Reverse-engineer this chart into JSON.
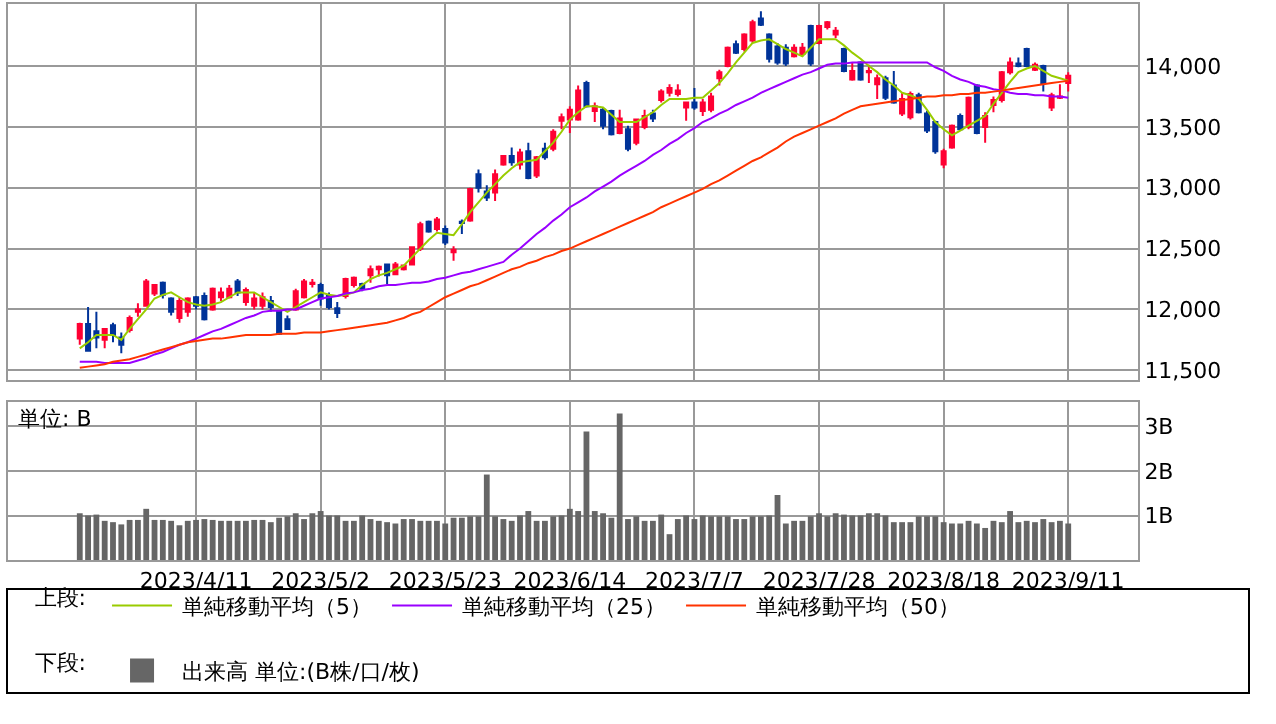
{
  "chart_data": [
    {
      "type": "candlestick",
      "legend_title": "上段:",
      "legend": "bottom",
      "grid": true,
      "tick_labels": "y",
      "categories": [
        null,
        null,
        null,
        null,
        null,
        null,
        null,
        null,
        null,
        null,
        null,
        null,
        null,
        null,
        "2023/4/11",
        null,
        null,
        null,
        null,
        null,
        null,
        null,
        null,
        null,
        null,
        null,
        null,
        null,
        null,
        "2023/5/2",
        null,
        null,
        null,
        null,
        null,
        null,
        null,
        null,
        null,
        null,
        null,
        null,
        null,
        null,
        "2023/5/23",
        null,
        null,
        null,
        null,
        null,
        null,
        null,
        null,
        null,
        null,
        null,
        null,
        null,
        null,
        "2023/6/14",
        null,
        null,
        null,
        null,
        null,
        null,
        null,
        null,
        null,
        null,
        null,
        null,
        null,
        null,
        "2023/7/7",
        null,
        null,
        null,
        null,
        null,
        null,
        null,
        null,
        null,
        null,
        null,
        null,
        null,
        null,
        "2023/7/28",
        null,
        null,
        null,
        null,
        null,
        null,
        null,
        null,
        null,
        null,
        null,
        null,
        null,
        null,
        "2023/8/18",
        null,
        null,
        null,
        null,
        null,
        null,
        null,
        null,
        null,
        null,
        null,
        null,
        null,
        null,
        "2023/9/11"
      ],
      "ohlc": [
        [
          11760,
          11890,
          11710,
          11880
        ],
        [
          11880,
          12020,
          11660,
          11660
        ],
        [
          11820,
          11980,
          11680,
          11770
        ],
        [
          11750,
          11840,
          11680,
          11840
        ],
        [
          11870,
          11890,
          11730,
          11790
        ],
        [
          11770,
          11810,
          11640,
          11710
        ],
        [
          11830,
          11950,
          11810,
          11930
        ],
        [
          11980,
          12050,
          11940,
          12000
        ],
        [
          12030,
          12250,
          12030,
          12230
        ],
        [
          12130,
          12210,
          12110,
          12200
        ],
        [
          12220,
          12230,
          12090,
          12120
        ],
        [
          12090,
          12100,
          11950,
          11980
        ],
        [
          11930,
          12100,
          11890,
          12070
        ],
        [
          11980,
          12100,
          11940,
          12090
        ],
        [
          12100,
          12110,
          12000,
          12030
        ],
        [
          12110,
          12140,
          11910,
          11920
        ],
        [
          12000,
          12180,
          11990,
          12170
        ],
        [
          12100,
          12180,
          12070,
          12140
        ],
        [
          12100,
          12200,
          12090,
          12170
        ],
        [
          12230,
          12250,
          12110,
          12140
        ],
        [
          12060,
          12180,
          12030,
          12160
        ],
        [
          12030,
          12140,
          12000,
          12090
        ],
        [
          12030,
          12140,
          12000,
          12100
        ],
        [
          12070,
          12110,
          11980,
          12020
        ],
        [
          11980,
          11990,
          11790,
          11800
        ],
        [
          11920,
          11950,
          11830,
          11840
        ],
        [
          12000,
          12170,
          11990,
          12150
        ],
        [
          12100,
          12250,
          12090,
          12230
        ],
        [
          12210,
          12250,
          12180,
          12220
        ],
        [
          12200,
          12220,
          12030,
          12090
        ],
        [
          12110,
          12140,
          12000,
          12020
        ],
        [
          12010,
          12060,
          11930,
          11970
        ],
        [
          12110,
          12260,
          12090,
          12250
        ],
        [
          12200,
          12270,
          12180,
          12260
        ],
        [
          12210,
          12220,
          12150,
          12170
        ],
        [
          12280,
          12360,
          12220,
          12330
        ],
        [
          12330,
          12360,
          12270,
          12350
        ],
        [
          12370,
          12370,
          12210,
          12280
        ],
        [
          12290,
          12390,
          12280,
          12370
        ],
        [
          12330,
          12370,
          12320,
          12360
        ],
        [
          12370,
          12520,
          12360,
          12510
        ],
        [
          12500,
          12720,
          12480,
          12700
        ],
        [
          12720,
          12730,
          12630,
          12640
        ],
        [
          12660,
          12760,
          12640,
          12740
        ],
        [
          12660,
          12690,
          12530,
          12550
        ],
        [
          12470,
          12520,
          12400,
          12490
        ],
        [
          12720,
          12740,
          12620,
          12710
        ],
        [
          12730,
          13000,
          12720,
          12990
        ],
        [
          13110,
          13150,
          12960,
          13000
        ],
        [
          12970,
          13020,
          12890,
          12920
        ],
        [
          12960,
          13150,
          12890,
          13110
        ],
        [
          13190,
          13270,
          13180,
          13260
        ],
        [
          13260,
          13330,
          13180,
          13210
        ],
        [
          13190,
          13320,
          13150,
          13290
        ],
        [
          13300,
          13370,
          13070,
          13080
        ],
        [
          13100,
          13260,
          13080,
          13250
        ],
        [
          13320,
          13370,
          13230,
          13250
        ],
        [
          13320,
          13480,
          13300,
          13460
        ],
        [
          13550,
          13610,
          13480,
          13580
        ],
        [
          13560,
          13670,
          13450,
          13640
        ],
        [
          13560,
          13840,
          13550,
          13800
        ],
        [
          13860,
          13880,
          13660,
          13670
        ],
        [
          13630,
          13700,
          13540,
          13670
        ],
        [
          13640,
          13660,
          13480,
          13510
        ],
        [
          13630,
          13640,
          13430,
          13440
        ],
        [
          13450,
          13640,
          13440,
          13570
        ],
        [
          13480,
          13510,
          13300,
          13320
        ],
        [
          13370,
          13570,
          13350,
          13560
        ],
        [
          13500,
          13640,
          13480,
          13590
        ],
        [
          13610,
          13640,
          13540,
          13570
        ],
        [
          13720,
          13810,
          13700,
          13790
        ],
        [
          13780,
          13850,
          13750,
          13820
        ],
        [
          13770,
          13850,
          13750,
          13800
        ],
        [
          13660,
          13700,
          13550,
          13700
        ],
        [
          13700,
          13820,
          13640,
          13660
        ],
        [
          13630,
          13730,
          13590,
          13700
        ],
        [
          13640,
          13780,
          13620,
          13750
        ],
        [
          13900,
          13970,
          13840,
          13950
        ],
        [
          14000,
          14160,
          13990,
          14150
        ],
        [
          14180,
          14210,
          14100,
          14110
        ],
        [
          14140,
          14270,
          14120,
          14260
        ],
        [
          14210,
          14380,
          14190,
          14360
        ],
        [
          14390,
          14450,
          14330,
          14340
        ],
        [
          14260,
          14270,
          14030,
          14060
        ],
        [
          14160,
          14190,
          14010,
          14030
        ],
        [
          14150,
          14180,
          14000,
          14020
        ],
        [
          14080,
          14180,
          14070,
          14150
        ],
        [
          14100,
          14190,
          14080,
          14150
        ],
        [
          14330,
          14340,
          14000,
          14020
        ],
        [
          14190,
          14340,
          14180,
          14330
        ],
        [
          14320,
          14370,
          14300,
          14360
        ],
        [
          14260,
          14320,
          14230,
          14290
        ],
        [
          14140,
          14150,
          13950,
          13960
        ],
        [
          13890,
          14030,
          13880,
          13960
        ],
        [
          14030,
          14040,
          13880,
          13890
        ],
        [
          13950,
          14010,
          13860,
          13960
        ],
        [
          13850,
          13930,
          13730,
          13900
        ],
        [
          13900,
          13920,
          13720,
          13740
        ],
        [
          13840,
          13960,
          13690,
          13700
        ],
        [
          13610,
          13780,
          13590,
          13730
        ],
        [
          13580,
          13790,
          13560,
          13770
        ],
        [
          13760,
          13780,
          13610,
          13620
        ],
        [
          13610,
          13630,
          13450,
          13470
        ],
        [
          13540,
          13550,
          13280,
          13300
        ],
        [
          13190,
          13320,
          13160,
          13300
        ],
        [
          13330,
          13520,
          13320,
          13510
        ],
        [
          13590,
          13610,
          13470,
          13480
        ],
        [
          13500,
          13750,
          13480,
          13740
        ],
        [
          13840,
          13850,
          13440,
          13450
        ],
        [
          13500,
          13620,
          13370,
          13590
        ],
        [
          13680,
          13750,
          13620,
          13720
        ],
        [
          13720,
          13960,
          13700,
          13950
        ],
        [
          13950,
          14070,
          13930,
          14030
        ],
        [
          14020,
          14070,
          13990,
          14000
        ],
        [
          14140,
          14150,
          13990,
          14000
        ],
        [
          13970,
          14030,
          13960,
          14010
        ],
        [
          14000,
          14010,
          13790,
          13860
        ],
        [
          13660,
          13780,
          13630,
          13760
        ],
        [
          13740,
          13850,
          13730,
          13750
        ],
        [
          13860,
          13950,
          13790,
          13920
        ]
      ],
      "colors": [
        "#ff0033",
        "#003399",
        "#003399",
        "#ff0033",
        "#003399",
        "#003399",
        "#ff0033",
        "#ff0033",
        "#ff0033",
        "#ff0033",
        "#003399",
        "#003399",
        "#ff0033",
        "#ff0033",
        "#003399",
        "#003399",
        "#ff0033",
        "#ff0033",
        "#ff0033",
        "#003399",
        "#ff0033",
        "#ff0033",
        "#ff0033",
        "#003399",
        "#003399",
        "#003399",
        "#ff0033",
        "#ff0033",
        "#ff0033",
        "#003399",
        "#003399",
        "#003399",
        "#ff0033",
        "#ff0033",
        "#003399",
        "#ff0033",
        "#ff0033",
        "#003399",
        "#ff0033",
        "#ff0033",
        "#ff0033",
        "#ff0033",
        "#003399",
        "#ff0033",
        "#003399",
        "#ff0033",
        "#003399",
        "#ff0033",
        "#003399",
        "#003399",
        "#ff0033",
        "#ff0033",
        "#003399",
        "#ff0033",
        "#003399",
        "#ff0033",
        "#003399",
        "#ff0033",
        "#ff0033",
        "#ff0033",
        "#ff0033",
        "#003399",
        "#ff0033",
        "#003399",
        "#003399",
        "#ff0033",
        "#003399",
        "#ff0033",
        "#ff0033",
        "#003399",
        "#ff0033",
        "#ff0033",
        "#ff0033",
        "#ff0033",
        "#003399",
        "#ff0033",
        "#ff0033",
        "#ff0033",
        "#ff0033",
        "#003399",
        "#ff0033",
        "#ff0033",
        "#003399",
        "#003399",
        "#003399",
        "#003399",
        "#ff0033",
        "#ff0033",
        "#003399",
        "#ff0033",
        "#ff0033",
        "#ff0033",
        "#003399",
        "#ff0033",
        "#003399",
        "#ff0033",
        "#ff0033",
        "#003399",
        "#003399",
        "#ff0033",
        "#ff0033",
        "#003399",
        "#003399",
        "#003399",
        "#ff0033",
        "#ff0033",
        "#003399",
        "#ff0033",
        "#003399",
        "#ff0033",
        "#ff0033",
        "#ff0033",
        "#ff0033",
        "#003399",
        "#003399",
        "#ff0033",
        "#003399",
        "#ff0033",
        "#ff0033",
        "#ff0033"
      ],
      "series": [
        {
          "type": "line",
          "name": "単純移動平均（5）",
          "color": "#99cc00",
          "values": [
            11680,
            11730,
            11790,
            11790,
            11790,
            11750,
            11840,
            11920,
            12000,
            12090,
            12120,
            12140,
            12100,
            12060,
            12040,
            12030,
            12040,
            12060,
            12100,
            12140,
            12140,
            12140,
            12100,
            12060,
            12020,
            11980,
            12020,
            12060,
            12100,
            12140,
            12120,
            12110,
            12120,
            12140,
            12200,
            12250,
            12280,
            12300,
            12330,
            12360,
            12430,
            12500,
            12570,
            12630,
            12620,
            12610,
            12700,
            12800,
            12880,
            12960,
            13030,
            13100,
            13160,
            13210,
            13220,
            13230,
            13300,
            13370,
            13460,
            13560,
            13620,
            13670,
            13670,
            13660,
            13600,
            13540,
            13540,
            13540,
            13580,
            13620,
            13680,
            13730,
            13730,
            13730,
            13740,
            13740,
            13800,
            13860,
            13940,
            14030,
            14110,
            14190,
            14210,
            14220,
            14180,
            14140,
            14110,
            14080,
            14150,
            14220,
            14220,
            14220,
            14170,
            14110,
            14060,
            14000,
            13950,
            13890,
            13840,
            13780,
            13760,
            13730,
            13640,
            13540,
            13480,
            13430,
            13470,
            13510,
            13550,
            13590,
            13690,
            13780,
            13870,
            13950,
            13980,
            14000,
            13960,
            13920,
            13900,
            13880
          ]
        },
        {
          "type": "line",
          "name": "単純移動平均（25）",
          "color": "#9900ff",
          "values": [
            11570,
            11570,
            11570,
            11560,
            11560,
            11560,
            11560,
            11580,
            11600,
            11630,
            11650,
            11680,
            11710,
            11730,
            11760,
            11790,
            11820,
            11840,
            11870,
            11900,
            11930,
            11950,
            11980,
            11990,
            11990,
            12000,
            12000,
            12030,
            12060,
            12090,
            12100,
            12110,
            12130,
            12140,
            12160,
            12170,
            12190,
            12200,
            12200,
            12210,
            12220,
            12220,
            12230,
            12250,
            12260,
            12280,
            12300,
            12310,
            12330,
            12350,
            12370,
            12390,
            12450,
            12500,
            12560,
            12620,
            12670,
            12730,
            12780,
            12840,
            12880,
            12920,
            12970,
            13010,
            13050,
            13100,
            13140,
            13180,
            13220,
            13270,
            13310,
            13360,
            13400,
            13450,
            13490,
            13540,
            13570,
            13610,
            13640,
            13680,
            13710,
            13740,
            13780,
            13810,
            13840,
            13870,
            13900,
            13930,
            13950,
            13980,
            14010,
            14020,
            14020,
            14030,
            14030,
            14030,
            14030,
            14030,
            14030,
            14030,
            14030,
            14030,
            14030,
            13990,
            13960,
            13920,
            13890,
            13870,
            13840,
            13830,
            13810,
            13800,
            13780,
            13770,
            13770,
            13760,
            13760,
            13750,
            13750,
            13740
          ]
        },
        {
          "type": "line",
          "name": "単純移動平均（50）",
          "color": "#ff3300",
          "values": [
            11520,
            11530,
            11540,
            11550,
            11570,
            11580,
            11590,
            11610,
            11630,
            11650,
            11670,
            11690,
            11710,
            11730,
            11740,
            11750,
            11760,
            11760,
            11770,
            11780,
            11790,
            11790,
            11790,
            11790,
            11800,
            11800,
            11800,
            11810,
            11810,
            11810,
            11820,
            11830,
            11840,
            11850,
            11860,
            11870,
            11880,
            11890,
            11910,
            11930,
            11960,
            11980,
            12020,
            12060,
            12100,
            12130,
            12160,
            12190,
            12210,
            12240,
            12270,
            12300,
            12330,
            12350,
            12380,
            12400,
            12430,
            12450,
            12480,
            12500,
            12530,
            12560,
            12590,
            12620,
            12650,
            12680,
            12710,
            12740,
            12770,
            12800,
            12840,
            12870,
            12900,
            12930,
            12960,
            12990,
            13030,
            13060,
            13100,
            13140,
            13180,
            13220,
            13250,
            13290,
            13330,
            13380,
            13420,
            13450,
            13480,
            13510,
            13540,
            13570,
            13610,
            13640,
            13670,
            13680,
            13690,
            13700,
            13710,
            13720,
            13730,
            13740,
            13750,
            13750,
            13760,
            13760,
            13770,
            13770,
            13780,
            13780,
            13790,
            13800,
            13810,
            13820,
            13830,
            13840,
            13850,
            13860,
            13870,
            13880
          ]
        }
      ],
      "ylim": [
        11420,
        14510
      ],
      "yticks": [
        {
          "value": 11500,
          "label": "11,500"
        },
        {
          "value": 12000,
          "label": "12,000"
        },
        {
          "value": 12500,
          "label": "12,500"
        },
        {
          "value": 13000,
          "label": "13,000"
        },
        {
          "value": 13500,
          "label": "13,500"
        },
        {
          "value": 14000,
          "label": "14,000"
        }
      ]
    },
    {
      "type": "bar",
      "legend_title": "下段:",
      "legend": "bottom",
      "grid": true,
      "annotations": [
        "単位: B"
      ],
      "categories": [
        null,
        null,
        null,
        null,
        null,
        null,
        null,
        null,
        null,
        null,
        null,
        null,
        null,
        null,
        "2023/4/11",
        null,
        null,
        null,
        null,
        null,
        null,
        null,
        null,
        null,
        null,
        null,
        null,
        null,
        null,
        "2023/5/2",
        null,
        null,
        null,
        null,
        null,
        null,
        null,
        null,
        null,
        null,
        null,
        null,
        null,
        null,
        "2023/5/23",
        null,
        null,
        null,
        null,
        null,
        null,
        null,
        null,
        null,
        null,
        null,
        null,
        null,
        null,
        "2023/6/14",
        null,
        null,
        null,
        null,
        null,
        null,
        null,
        null,
        null,
        null,
        null,
        null,
        null,
        null,
        "2023/7/7",
        null,
        null,
        null,
        null,
        null,
        null,
        null,
        null,
        null,
        null,
        null,
        null,
        null,
        null,
        "2023/7/28",
        null,
        null,
        null,
        null,
        null,
        null,
        null,
        null,
        null,
        null,
        null,
        null,
        null,
        null,
        "2023/8/18",
        null,
        null,
        null,
        null,
        null,
        null,
        null,
        null,
        null,
        null,
        null,
        null,
        null,
        null,
        "2023/9/11"
      ],
      "series": [
        {
          "name": "出来高 単位:(B株/口/枚)",
          "color": "#666666",
          "values": [
            1.05,
            1.0,
            1.02,
            0.88,
            0.85,
            0.8,
            0.9,
            0.9,
            1.15,
            0.9,
            0.9,
            0.88,
            0.78,
            0.88,
            0.9,
            0.92,
            0.9,
            0.88,
            0.88,
            0.88,
            0.88,
            0.9,
            0.9,
            0.85,
            0.95,
            0.98,
            1.05,
            0.92,
            1.05,
            1.1,
            1.0,
            1.0,
            0.88,
            0.88,
            1.0,
            0.92,
            0.88,
            0.85,
            0.82,
            0.92,
            0.92,
            0.88,
            0.88,
            0.88,
            0.82,
            0.95,
            0.95,
            0.98,
            0.98,
            1.92,
            0.98,
            0.92,
            0.88,
            1.0,
            1.1,
            0.88,
            0.88,
            0.98,
            1.0,
            1.15,
            1.1,
            2.89,
            1.1,
            1.05,
            0.95,
            3.29,
            0.92,
            0.98,
            0.88,
            0.88,
            1.02,
            0.58,
            0.92,
            1.0,
            0.92,
            1.0,
            0.98,
            0.98,
            0.98,
            0.92,
            0.92,
            0.98,
            0.98,
            1.0,
            1.46,
            0.82,
            0.88,
            0.88,
            0.98,
            1.05,
            0.98,
            1.05,
            1.02,
            1.0,
            1.0,
            1.05,
            1.05,
            1.0,
            0.85,
            0.85,
            0.85,
            0.98,
            0.98,
            0.98,
            0.85,
            0.82,
            0.82,
            0.88,
            0.82,
            0.72,
            0.88,
            0.85,
            1.1,
            0.85,
            0.88,
            0.85,
            0.92,
            0.85,
            0.88,
            0.82
          ]
        }
      ],
      "ylim": [
        0,
        3.55
      ],
      "yticks": [
        {
          "value": 1,
          "label": "1B"
        },
        {
          "value": 2,
          "label": "2B"
        },
        {
          "value": 3,
          "label": "3B"
        }
      ]
    }
  ]
}
